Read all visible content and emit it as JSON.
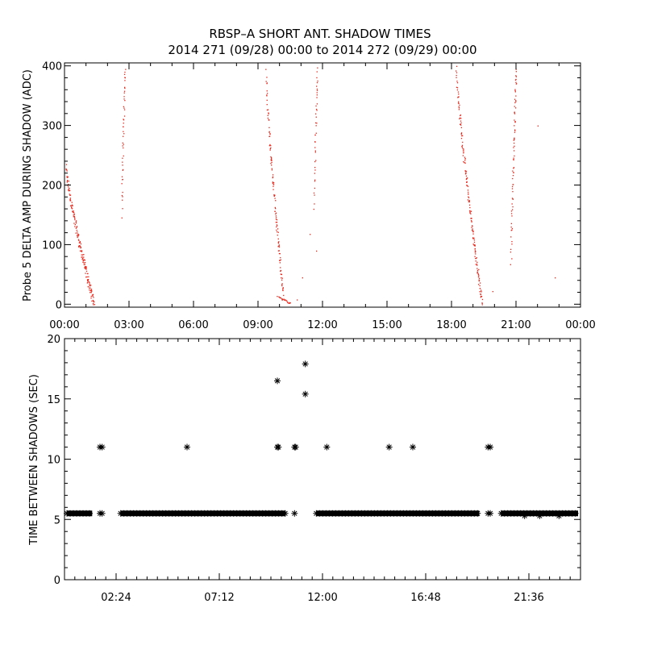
{
  "title": {
    "line1": "RBSP–A SHORT ANT. SHADOW TIMES",
    "line2": "2014 271 (09/28) 00:00 to 2014 272 (09/29) 00:00"
  },
  "colors": {
    "top_series": "#e8261a",
    "bottom_series": "#000000",
    "axes": "#000000"
  },
  "chart_data": [
    {
      "type": "scatter",
      "ylabel": "Probe 5 DELTA AMP DURING SHADOW (ADC)",
      "xlim_hours": [
        0,
        24
      ],
      "ylim": [
        -5,
        405
      ],
      "x_tick_labels": [
        "00:00",
        "03:00",
        "06:00",
        "09:00",
        "12:00",
        "15:00",
        "18:00",
        "21:00",
        "00:00"
      ],
      "y_ticks": [
        0,
        100,
        200,
        300,
        400
      ],
      "marker": "dot",
      "series_color": "#e8261a",
      "segments": [
        {
          "t_start": 0.05,
          "t_end": 1.35,
          "y_start": 230,
          "y_end": 2,
          "pts": 170,
          "spread": 18
        },
        {
          "t_start": 2.65,
          "t_end": 2.8,
          "y_start": 150,
          "y_end": 395,
          "pts": 45,
          "spread": 10
        },
        {
          "t_start": 9.35,
          "t_end": 10.15,
          "y_start": 390,
          "y_end": 15,
          "pts": 120,
          "spread": 15
        },
        {
          "t_start": 9.9,
          "t_end": 10.5,
          "y_start": 15,
          "y_end": 2,
          "pts": 20,
          "spread": 3
        },
        {
          "t_start": 11.6,
          "t_end": 11.75,
          "y_start": 160,
          "y_end": 395,
          "pts": 40,
          "spread": 10
        },
        {
          "t_start": 18.2,
          "t_end": 19.4,
          "y_start": 400,
          "y_end": 2,
          "pts": 170,
          "spread": 16
        },
        {
          "t_start": 20.75,
          "t_end": 21.0,
          "y_start": 70,
          "y_end": 395,
          "pts": 75,
          "spread": 12
        }
      ],
      "outliers": [
        {
          "t": 11.4,
          "y": 118
        },
        {
          "t": 11.05,
          "y": 45
        },
        {
          "t": 10.8,
          "y": 8
        },
        {
          "t": 19.9,
          "y": 22
        },
        {
          "t": 22.0,
          "y": 300
        },
        {
          "t": 22.8,
          "y": 45
        },
        {
          "t": 11.7,
          "y": 90
        }
      ]
    },
    {
      "type": "scatter",
      "ylabel": "TIME BETWEEN SHADOWS (SEC)",
      "xlim_hours": [
        0,
        24
      ],
      "ylim": [
        0,
        20
      ],
      "x_ticks_hours": [
        2.4,
        7.2,
        12.0,
        16.8,
        21.6
      ],
      "x_tick_labels": [
        "02:24",
        "07:12",
        "12:00",
        "16:48",
        "21:36"
      ],
      "y_ticks": [
        0,
        5,
        10,
        15,
        20
      ],
      "marker": "asterisk",
      "series_color": "#000000",
      "baseline": {
        "y": 5.5,
        "spans_hours": [
          [
            0.0,
            1.4
          ],
          [
            2.5,
            10.4
          ],
          [
            11.6,
            19.4
          ],
          [
            20.2,
            24.0
          ]
        ]
      },
      "points": [
        {
          "t": 1.65,
          "y": 11.0
        },
        {
          "t": 1.75,
          "y": 11.0
        },
        {
          "t": 1.65,
          "y": 5.5
        },
        {
          "t": 1.75,
          "y": 5.5
        },
        {
          "t": 5.7,
          "y": 11.0
        },
        {
          "t": 9.9,
          "y": 16.5
        },
        {
          "t": 9.9,
          "y": 11.0
        },
        {
          "t": 9.95,
          "y": 11.0
        },
        {
          "t": 10.7,
          "y": 11.0
        },
        {
          "t": 10.75,
          "y": 11.0
        },
        {
          "t": 10.7,
          "y": 5.5
        },
        {
          "t": 11.2,
          "y": 17.9
        },
        {
          "t": 11.2,
          "y": 15.4
        },
        {
          "t": 12.2,
          "y": 11.0
        },
        {
          "t": 15.1,
          "y": 11.0
        },
        {
          "t": 16.2,
          "y": 11.0
        },
        {
          "t": 19.7,
          "y": 11.0
        },
        {
          "t": 19.8,
          "y": 11.0
        },
        {
          "t": 19.7,
          "y": 5.5
        },
        {
          "t": 19.8,
          "y": 5.5
        },
        {
          "t": 21.4,
          "y": 5.3
        },
        {
          "t": 22.1,
          "y": 5.3
        },
        {
          "t": 23.0,
          "y": 5.3
        }
      ]
    }
  ]
}
